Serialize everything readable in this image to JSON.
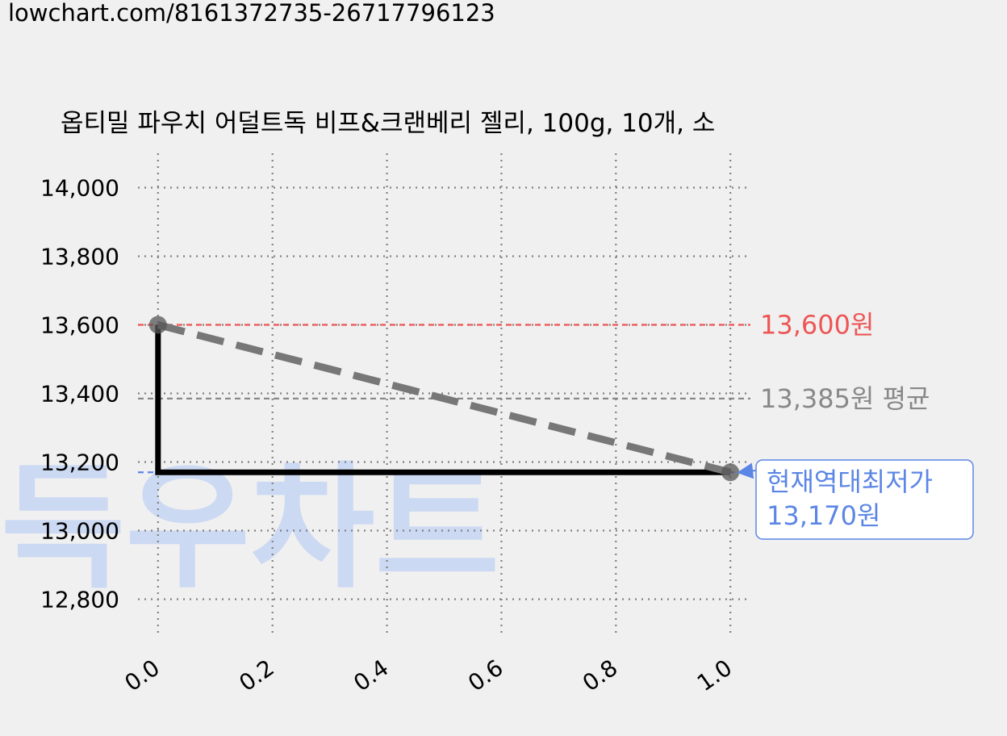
{
  "source_url": "lowchart.com/8161372735-26717796123",
  "watermark": "득우차트",
  "colors": {
    "background": "#f0f0f0",
    "max_line": "#ee5555",
    "avg_line": "#888888",
    "min_line": "#5b86e5",
    "trend_line": "#777777",
    "step_line": "#000000",
    "grid": "#808080",
    "watermark": "#ccd9f2"
  },
  "chart_data": {
    "type": "line",
    "title": "옵티밀 파우치 어덜트독 비프&크랜베리 젤리, 100g, 10개, 소",
    "xlabel": "",
    "ylabel": "",
    "xlim": [
      -0.035,
      1.035
    ],
    "ylim": [
      12700,
      14100
    ],
    "x_ticks": [
      0.0,
      0.2,
      0.4,
      0.6,
      0.8,
      1.0
    ],
    "x_tick_labels": [
      "0.0",
      "0.2",
      "0.4",
      "0.6",
      "0.8",
      "1.0"
    ],
    "y_ticks": [
      12800,
      13000,
      13200,
      13400,
      13600,
      13800,
      14000
    ],
    "y_tick_labels": [
      "12,800",
      "13,000",
      "13,200",
      "13,400",
      "13,600",
      "13,800",
      "14,000"
    ],
    "grid": true,
    "series": [
      {
        "style": "step",
        "x": [
          0.0,
          0.0,
          1.0
        ],
        "y": [
          13600,
          13170,
          13170
        ]
      },
      {
        "style": "dashed-trend",
        "x": [
          0.0,
          1.0
        ],
        "y": [
          13600,
          13170
        ]
      }
    ],
    "points": [
      {
        "x": 0.0,
        "y": 13600
      },
      {
        "x": 1.0,
        "y": 13170
      }
    ],
    "reference_lines": [
      {
        "kind": "max",
        "value": 13600,
        "label": "13,600원"
      },
      {
        "kind": "avg",
        "value": 13385,
        "label": "13,385원 평균"
      },
      {
        "kind": "min",
        "value": 13170,
        "label": "13,170원"
      }
    ],
    "annotation": {
      "x": 1.0,
      "y": 13170,
      "line1": "현재역대최저가",
      "line2": "13,170원"
    }
  }
}
